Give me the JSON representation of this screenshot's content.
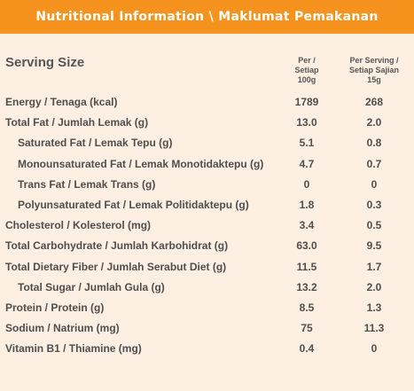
{
  "header": {
    "title": "Nutritional Information \\ Maklumat Pemakanan"
  },
  "table": {
    "serving_size_label": "Serving Size",
    "col1": [
      "Per /",
      "Setiap",
      "100g"
    ],
    "col2": [
      "Per Serving /",
      "Setiap Sajian",
      "15g"
    ],
    "rows": [
      {
        "label": "Energy / Tenaga (kcal)",
        "indent": false,
        "per100": "1789",
        "perServing": "268"
      },
      {
        "label": "Total Fat / Jumlah Lemak (g)",
        "indent": false,
        "per100": "13.0",
        "perServing": "2.0"
      },
      {
        "label": "Saturated Fat / Lemak Tepu (g)",
        "indent": true,
        "per100": "5.1",
        "perServing": "0.8"
      },
      {
        "label": "Monounsaturated Fat / Lemak Monotidaktepu (g)",
        "indent": true,
        "per100": "4.7",
        "perServing": "0.7"
      },
      {
        "label": "Trans Fat / Lemak Trans (g)",
        "indent": true,
        "per100": "0",
        "perServing": "0"
      },
      {
        "label": "Polyunsaturated Fat / Lemak Politidaktepu (g)",
        "indent": true,
        "per100": "1.8",
        "perServing": "0.3"
      },
      {
        "label": "Cholesterol / Kolesterol (mg)",
        "indent": false,
        "per100": "3.4",
        "perServing": "0.5"
      },
      {
        "label": "Total Carbohydrate / Jumlah Karbohidrat (g)",
        "indent": false,
        "per100": "63.0",
        "perServing": "9.5"
      },
      {
        "label": "Total Dietary Fiber / Jumlah Serabut Diet (g)",
        "indent": false,
        "per100": "11.5",
        "perServing": "1.7"
      },
      {
        "label": "Total Sugar / Jumlah Gula (g)",
        "indent": true,
        "per100": "13.2",
        "perServing": "2.0"
      },
      {
        "label": "Protein / Protein (g)",
        "indent": false,
        "per100": "8.5",
        "perServing": "1.3"
      },
      {
        "label": "Sodium / Natrium (mg)",
        "indent": false,
        "per100": "75",
        "perServing": "11.3"
      },
      {
        "label": "Vitamin B1 / Thiamine (mg)",
        "indent": false,
        "per100": "0.4",
        "perServing": "0"
      }
    ]
  }
}
